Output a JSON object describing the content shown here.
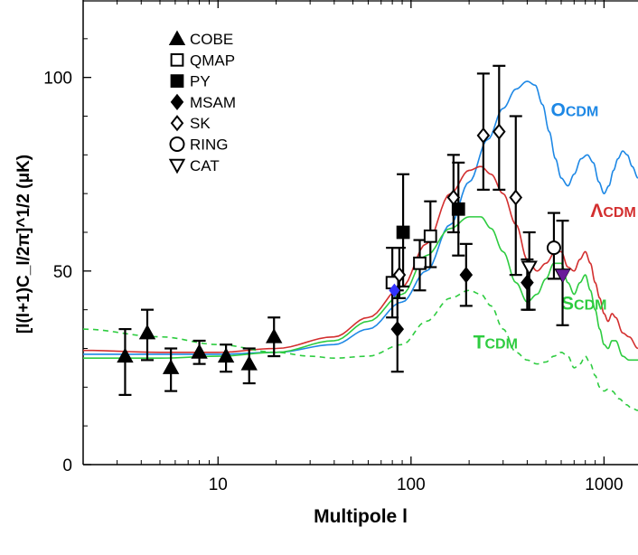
{
  "chart_data": {
    "type": "scatter",
    "xlabel": "Multipole l",
    "ylabel": "[l(l+1)C_l/2π]^1/2 (μK)",
    "xscale": "log",
    "xlim": [
      2,
      1500
    ],
    "ylim": [
      0,
      120
    ],
    "x_ticks": [
      {
        "value": 10,
        "label": "10"
      },
      {
        "value": 100,
        "label": "100"
      },
      {
        "value": 1000,
        "label": "1000"
      }
    ],
    "y_ticks": [
      {
        "value": 0,
        "label": "0"
      },
      {
        "value": 50,
        "label": "50"
      },
      {
        "value": 100,
        "label": "100"
      }
    ],
    "legend_position": "top-left",
    "series": [
      {
        "name": "COBE",
        "marker": "triangle-up",
        "fill": "filled",
        "color": "#000000",
        "points": [
          {
            "x": 3.3,
            "y": 28,
            "lo": 18,
            "hi": 35
          },
          {
            "x": 4.3,
            "y": 34,
            "lo": 27,
            "hi": 40
          },
          {
            "x": 5.7,
            "y": 25,
            "lo": 19,
            "hi": 30
          },
          {
            "x": 8.0,
            "y": 29,
            "lo": 26,
            "hi": 32
          },
          {
            "x": 11,
            "y": 28,
            "lo": 24,
            "hi": 31
          },
          {
            "x": 14.5,
            "y": 26,
            "lo": 21,
            "hi": 30
          },
          {
            "x": 19.5,
            "y": 33,
            "lo": 28,
            "hi": 38
          }
        ]
      },
      {
        "name": "QMAP",
        "marker": "square",
        "fill": "open",
        "color": "#000000",
        "points": [
          {
            "x": 80,
            "y": 47,
            "lo": 38,
            "hi": 56
          },
          {
            "x": 111,
            "y": 52,
            "lo": 45,
            "hi": 58
          },
          {
            "x": 126,
            "y": 59,
            "lo": 51,
            "hi": 68
          }
        ]
      },
      {
        "name": "PY",
        "marker": "square",
        "fill": "filled",
        "color": "#000000",
        "points": [
          {
            "x": 91,
            "y": 60,
            "lo": 46,
            "hi": 75
          },
          {
            "x": 176,
            "y": 66,
            "lo": 54,
            "hi": 78
          }
        ]
      },
      {
        "name": "MSAM",
        "marker": "diamond",
        "fill": "filled",
        "color": "#000000",
        "points": [
          {
            "x": 85,
            "y": 35,
            "lo": 24,
            "hi": 45
          },
          {
            "x": 193,
            "y": 49,
            "lo": 41,
            "hi": 57
          },
          {
            "x": 400,
            "y": 47,
            "lo": 40,
            "hi": 53
          }
        ]
      },
      {
        "name": "SK",
        "marker": "diamond",
        "fill": "open",
        "color": "#000000",
        "points": [
          {
            "x": 87,
            "y": 49,
            "lo": 43,
            "hi": 56
          },
          {
            "x": 166,
            "y": 69,
            "lo": 60,
            "hi": 80
          },
          {
            "x": 237,
            "y": 85,
            "lo": 71,
            "hi": 101
          },
          {
            "x": 286,
            "y": 86,
            "lo": 71,
            "hi": 103
          },
          {
            "x": 349,
            "y": 69,
            "lo": 49,
            "hi": 90
          }
        ]
      },
      {
        "name": "RING",
        "marker": "circle",
        "fill": "open",
        "color": "#000000",
        "points": [
          {
            "x": 550,
            "y": 56,
            "lo": 48,
            "hi": 65
          }
        ]
      },
      {
        "name": "CAT",
        "marker": "triangle-down",
        "fill": "open",
        "color": "#000000",
        "points": [
          {
            "x": 410,
            "y": 51,
            "lo": 40,
            "hi": 60
          },
          {
            "x": 610,
            "y": 49,
            "lo": 36,
            "hi": 63
          }
        ]
      }
    ],
    "extra_points": [
      {
        "x": 82,
        "y": 45,
        "marker": "diamond",
        "fill": "filled",
        "color": "#3333ff"
      },
      {
        "x": 612,
        "y": 49,
        "marker": "triangle-down",
        "fill": "filled",
        "color": "#6a1b9a"
      }
    ],
    "models": [
      {
        "name": "OCDM",
        "color": "#1e88e5",
        "dash": false,
        "points": [
          [
            2,
            28.5
          ],
          [
            5,
            28.5
          ],
          [
            10,
            28.5
          ],
          [
            20,
            29
          ],
          [
            40,
            31
          ],
          [
            60,
            35
          ],
          [
            90,
            42
          ],
          [
            120,
            50
          ],
          [
            160,
            62
          ],
          [
            200,
            73
          ],
          [
            250,
            84
          ],
          [
            300,
            92
          ],
          [
            350,
            97
          ],
          [
            400,
            99
          ],
          [
            440,
            98
          ],
          [
            480,
            93
          ],
          [
            520,
            86
          ],
          [
            560,
            79
          ],
          [
            600,
            74
          ],
          [
            650,
            72
          ],
          [
            700,
            75
          ],
          [
            760,
            79
          ],
          [
            820,
            80
          ],
          [
            880,
            78
          ],
          [
            940,
            73
          ],
          [
            1000,
            70
          ],
          [
            1060,
            72
          ],
          [
            1120,
            76
          ],
          [
            1180,
            79
          ],
          [
            1250,
            81
          ],
          [
            1320,
            80
          ],
          [
            1400,
            77
          ],
          [
            1500,
            74
          ]
        ]
      },
      {
        "name": "ΛCDM",
        "color": "#d32f2f",
        "dash": false,
        "points": [
          [
            2,
            29.5
          ],
          [
            5,
            29
          ],
          [
            10,
            29
          ],
          [
            20,
            30
          ],
          [
            40,
            33
          ],
          [
            60,
            38
          ],
          [
            90,
            46
          ],
          [
            120,
            57
          ],
          [
            160,
            70
          ],
          [
            200,
            76
          ],
          [
            230,
            77
          ],
          [
            260,
            75
          ],
          [
            300,
            70
          ],
          [
            350,
            62
          ],
          [
            400,
            53
          ],
          [
            450,
            50
          ],
          [
            500,
            52
          ],
          [
            560,
            55
          ],
          [
            600,
            55
          ],
          [
            650,
            51
          ],
          [
            700,
            50
          ],
          [
            750,
            53
          ],
          [
            800,
            55
          ],
          [
            850,
            52
          ],
          [
            900,
            47
          ],
          [
            950,
            43
          ],
          [
            1000,
            39
          ],
          [
            1050,
            37
          ],
          [
            1100,
            39
          ],
          [
            1150,
            38
          ],
          [
            1250,
            34
          ],
          [
            1350,
            33
          ],
          [
            1500,
            30
          ]
        ]
      },
      {
        "name": "SCDM",
        "color": "#2ecc40",
        "dash": false,
        "points": [
          [
            2,
            27.5
          ],
          [
            5,
            27.5
          ],
          [
            10,
            28
          ],
          [
            20,
            29
          ],
          [
            40,
            32
          ],
          [
            60,
            37
          ],
          [
            90,
            44
          ],
          [
            120,
            54
          ],
          [
            160,
            61
          ],
          [
            200,
            64
          ],
          [
            230,
            64
          ],
          [
            260,
            61
          ],
          [
            300,
            55
          ],
          [
            350,
            47
          ],
          [
            400,
            42
          ],
          [
            450,
            44
          ],
          [
            500,
            48
          ],
          [
            550,
            52
          ],
          [
            600,
            52
          ],
          [
            650,
            47
          ],
          [
            700,
            44
          ],
          [
            750,
            47
          ],
          [
            800,
            49
          ],
          [
            850,
            45
          ],
          [
            900,
            40
          ],
          [
            950,
            35
          ],
          [
            1000,
            31
          ],
          [
            1050,
            30
          ],
          [
            1100,
            32
          ],
          [
            1150,
            32
          ],
          [
            1250,
            28
          ],
          [
            1350,
            27
          ],
          [
            1500,
            27
          ]
        ]
      },
      {
        "name": "TCDM",
        "color": "#2ecc40",
        "dash": true,
        "points": [
          [
            2,
            35
          ],
          [
            5,
            33
          ],
          [
            10,
            31
          ],
          [
            20,
            29
          ],
          [
            30,
            28
          ],
          [
            40,
            27.5
          ],
          [
            60,
            28
          ],
          [
            90,
            31
          ],
          [
            120,
            37
          ],
          [
            160,
            43
          ],
          [
            200,
            45
          ],
          [
            230,
            44
          ],
          [
            260,
            41
          ],
          [
            300,
            35
          ],
          [
            350,
            29
          ],
          [
            400,
            27
          ],
          [
            450,
            26
          ],
          [
            500,
            26.5
          ],
          [
            550,
            28
          ],
          [
            600,
            29
          ],
          [
            650,
            28
          ],
          [
            700,
            25
          ],
          [
            750,
            26
          ],
          [
            800,
            28
          ],
          [
            850,
            26
          ],
          [
            900,
            23
          ],
          [
            950,
            20
          ],
          [
            1000,
            19
          ],
          [
            1050,
            19.5
          ],
          [
            1100,
            19
          ],
          [
            1200,
            17
          ],
          [
            1300,
            15.5
          ],
          [
            1400,
            14.5
          ],
          [
            1500,
            14
          ]
        ]
      }
    ],
    "model_labels": [
      {
        "model": "OCDM",
        "first": "O",
        "rest": "CDM",
        "color": "#1e88e5",
        "x": 530,
        "y": 90
      },
      {
        "model": "ΛCDM",
        "first": "Λ",
        "rest": "CDM",
        "color": "#d32f2f",
        "x": 850,
        "y": 64
      },
      {
        "model": "SCDM",
        "first": "S",
        "rest": "CDM",
        "color": "#2ecc40",
        "x": 600,
        "y": 40
      },
      {
        "model": "TCDM",
        "first": "T",
        "rest": "CDM",
        "color": "#2ecc40",
        "x": 210,
        "y": 30
      }
    ]
  }
}
